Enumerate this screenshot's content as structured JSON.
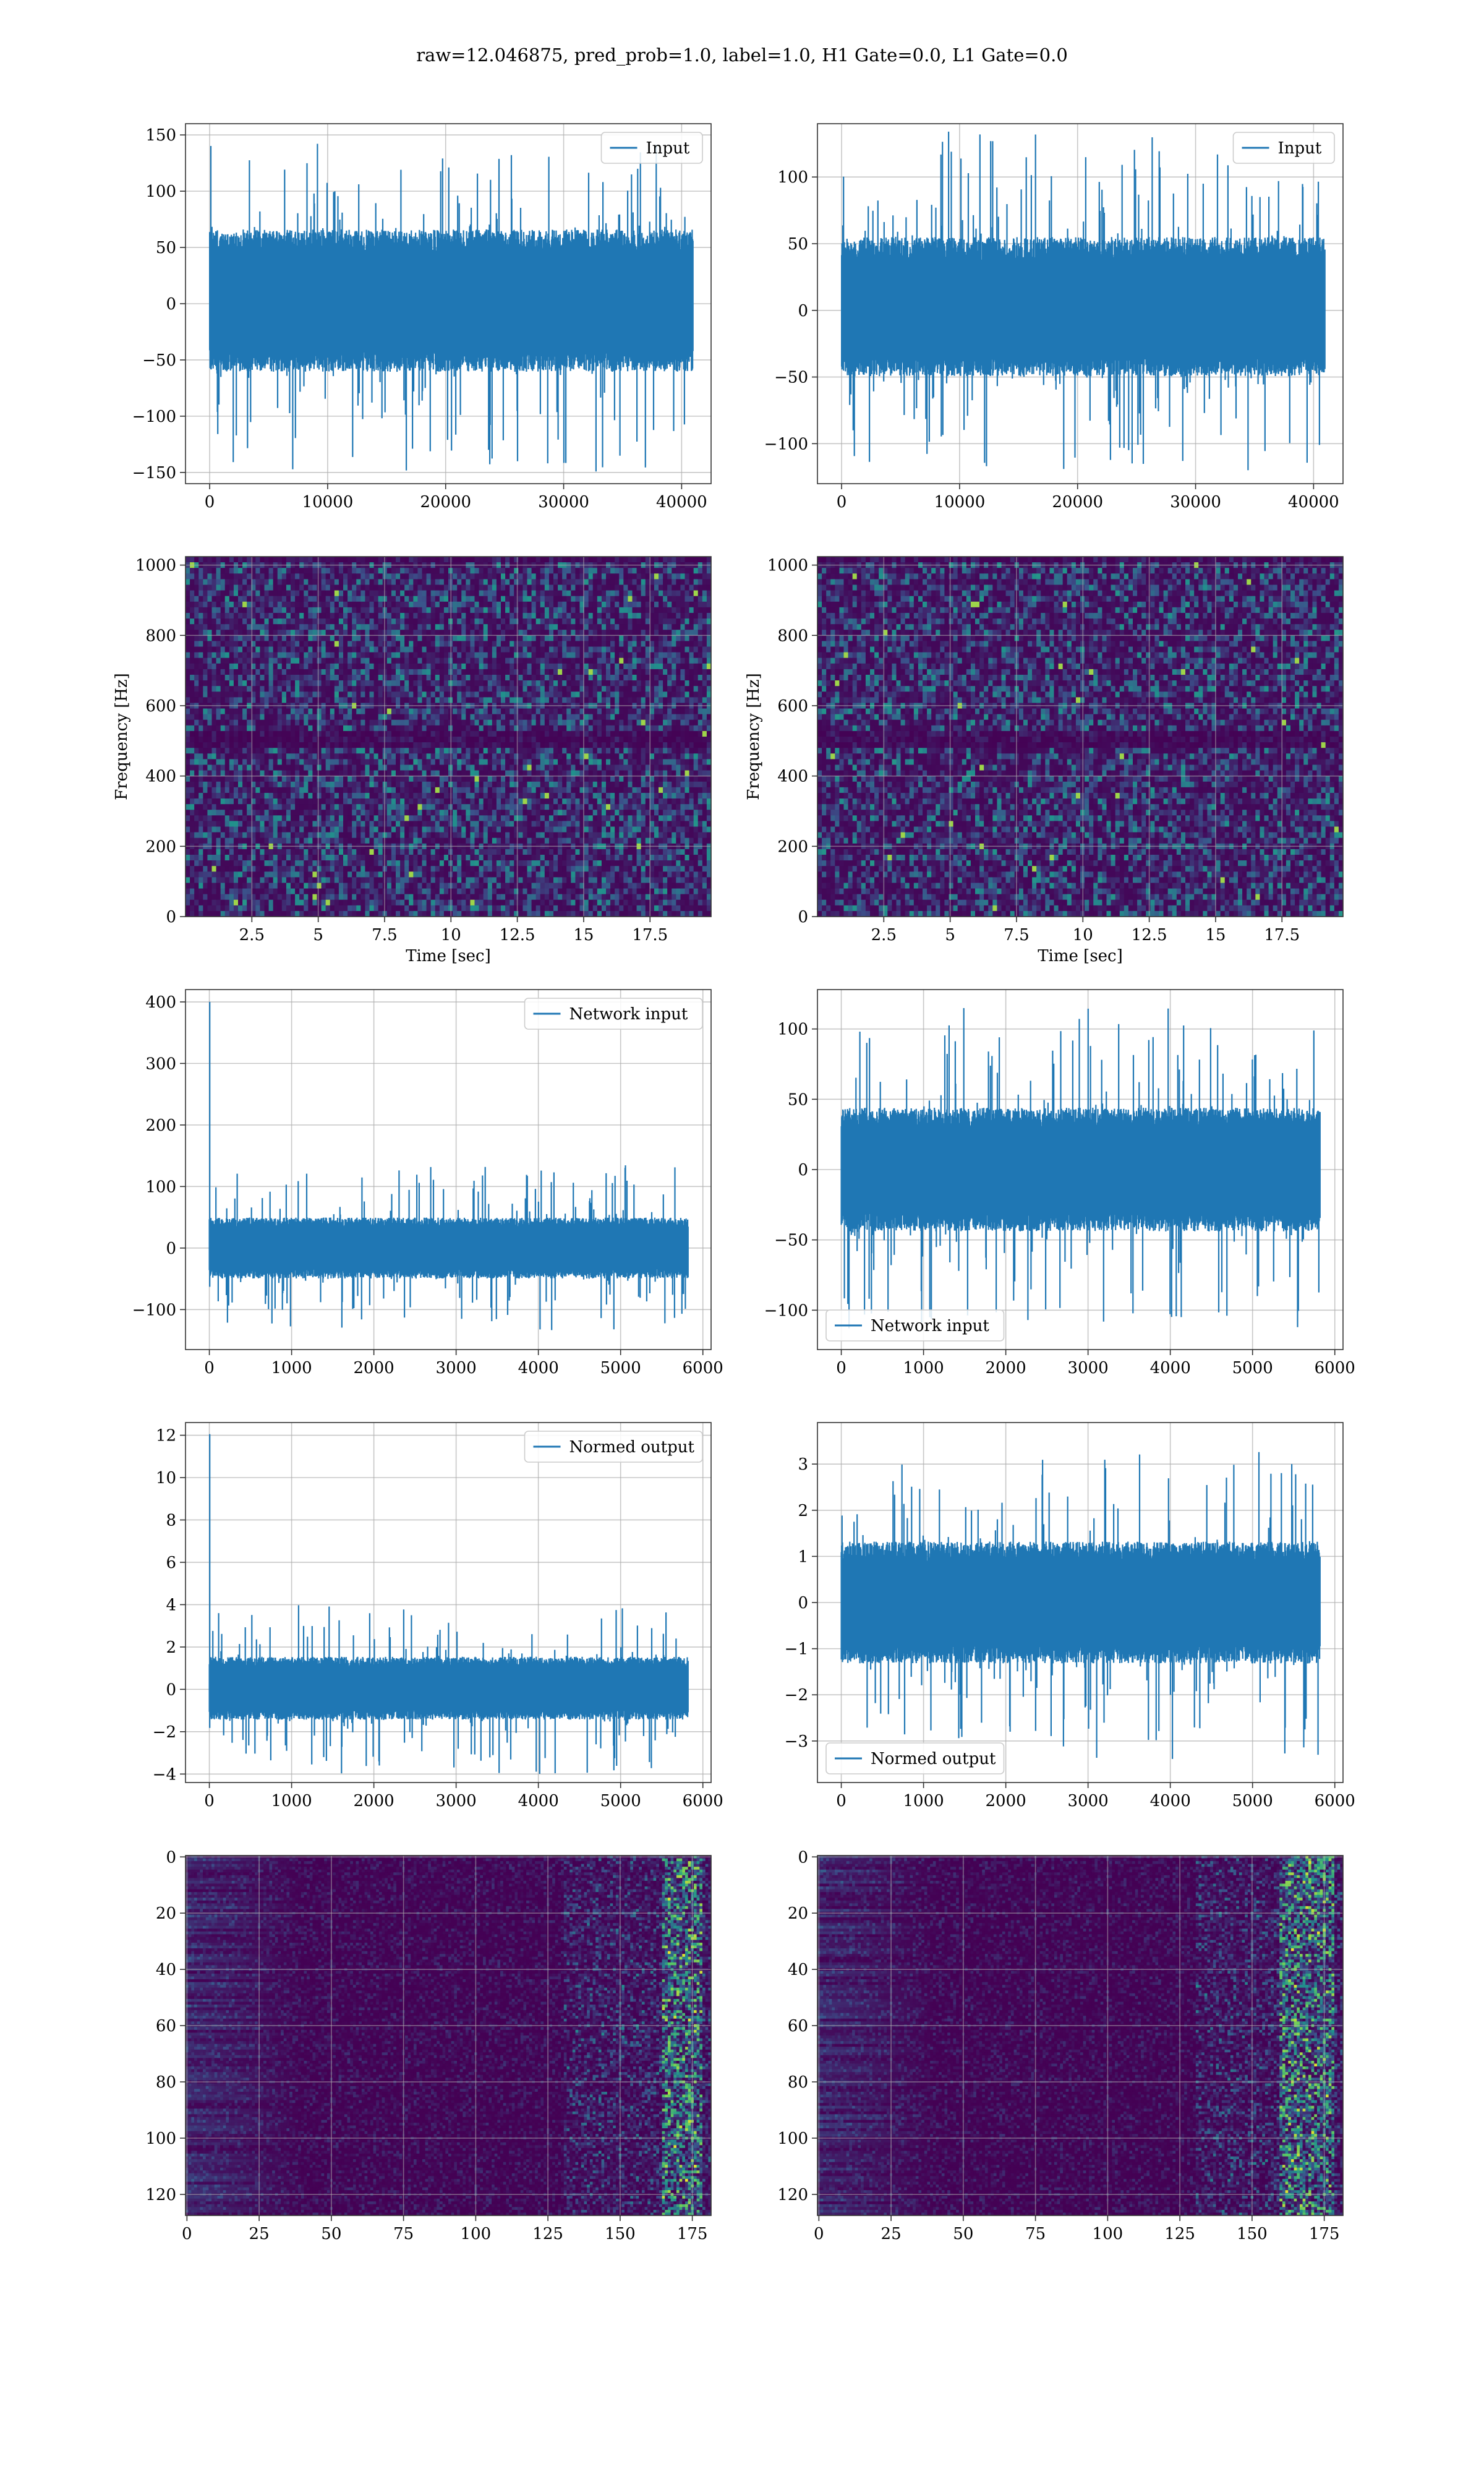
{
  "suptitle": "raw=12.046875, pred_prob=1.0, label=1.0, H1 Gate=0.0, L1 Gate=0.0",
  "colors": {
    "line": "#1f77b4",
    "grid": "#b0b0b0",
    "frame": "#333333",
    "viridis_low": "#440154",
    "viridis_high": "#fde725"
  },
  "chart_data": [
    {
      "id": "row1-left",
      "type": "line",
      "xlim": [
        -2048,
        42496
      ],
      "ylim": [
        -160,
        160
      ],
      "xticks": [
        0,
        10000,
        20000,
        30000,
        40000
      ],
      "yticks": [
        -150,
        -100,
        -50,
        0,
        50,
        100,
        150
      ],
      "grid": true,
      "legend": {
        "label": "Input",
        "loc": "upper right"
      },
      "series": [
        {
          "name": "Input",
          "x_range": [
            0,
            40960
          ],
          "band": [
            -55,
            60
          ],
          "extremes": [
            -150,
            145
          ],
          "offset": 0
        }
      ]
    },
    {
      "id": "row1-right",
      "type": "line",
      "xlim": [
        -2048,
        42496
      ],
      "ylim": [
        -130,
        140
      ],
      "xticks": [
        0,
        10000,
        20000,
        30000,
        40000
      ],
      "yticks": [
        -100,
        -50,
        0,
        50,
        100
      ],
      "grid": true,
      "legend": {
        "label": "Input",
        "loc": "upper right"
      },
      "series": [
        {
          "name": "Input",
          "x_range": [
            0,
            40960
          ],
          "band": [
            -45,
            50
          ],
          "extremes": [
            -120,
            135
          ],
          "offset": 0
        }
      ]
    },
    {
      "id": "row2-left",
      "type": "heatmap",
      "xlim": [
        0,
        19.8
      ],
      "ylim": [
        0,
        1024
      ],
      "xticks": [
        2.5,
        5.0,
        7.5,
        10.0,
        12.5,
        15.0,
        17.5
      ],
      "yticks": [
        0,
        200,
        400,
        600,
        800,
        1000
      ],
      "xlabel": "Time [sec]",
      "ylabel": "Frequency [Hz]",
      "grid": true,
      "colormap": "viridis",
      "dark_band_hz": 500
    },
    {
      "id": "row2-right",
      "type": "heatmap",
      "xlim": [
        0,
        19.8
      ],
      "ylim": [
        0,
        1024
      ],
      "xticks": [
        2.5,
        5.0,
        7.5,
        10.0,
        12.5,
        15.0,
        17.5
      ],
      "yticks": [
        0,
        200,
        400,
        600,
        800,
        1000
      ],
      "xlabel": "Time [sec]",
      "ylabel": "Frequency [Hz]",
      "grid": true,
      "colormap": "viridis",
      "dark_band_hz": 500
    },
    {
      "id": "row3-left",
      "type": "line",
      "xlim": [
        -290,
        6100
      ],
      "ylim": [
        -165,
        420
      ],
      "xticks": [
        0,
        1000,
        2000,
        3000,
        4000,
        5000,
        6000
      ],
      "yticks": [
        -100,
        0,
        100,
        200,
        300,
        400
      ],
      "grid": true,
      "legend": {
        "label": "Network input",
        "loc": "upper right"
      },
      "series": [
        {
          "name": "Network input",
          "x_range": [
            0,
            5820
          ],
          "band": [
            -45,
            45
          ],
          "extremes": [
            -135,
            135
          ],
          "spike": [
            5,
            400
          ],
          "offset": 0
        }
      ]
    },
    {
      "id": "row3-right",
      "type": "line",
      "xlim": [
        -290,
        6100
      ],
      "ylim": [
        -128,
        128
      ],
      "xticks": [
        0,
        1000,
        2000,
        3000,
        4000,
        5000,
        6000
      ],
      "yticks": [
        -100,
        -50,
        0,
        50,
        100
      ],
      "grid": true,
      "legend": {
        "label": "Network input",
        "loc": "lower left"
      },
      "series": [
        {
          "name": "Network input",
          "x_range": [
            0,
            5820
          ],
          "band": [
            -40,
            40
          ],
          "extremes": [
            -115,
            115
          ],
          "offset": 0
        }
      ]
    },
    {
      "id": "row4-left",
      "type": "line",
      "xlim": [
        -290,
        6100
      ],
      "ylim": [
        -4.4,
        12.6
      ],
      "xticks": [
        0,
        1000,
        2000,
        3000,
        4000,
        5000,
        6000
      ],
      "yticks": [
        -4,
        -2,
        0,
        2,
        4,
        6,
        8,
        10,
        12
      ],
      "grid": true,
      "legend": {
        "label": "Normed output",
        "loc": "upper right"
      },
      "series": [
        {
          "name": "Normed output",
          "x_range": [
            0,
            5820
          ],
          "band": [
            -1.3,
            1.4
          ],
          "extremes": [
            -4.0,
            4.0
          ],
          "spike": [
            5,
            12.05
          ],
          "offset": 0
        }
      ]
    },
    {
      "id": "row4-right",
      "type": "line",
      "xlim": [
        -290,
        6100
      ],
      "ylim": [
        -3.9,
        3.9
      ],
      "xticks": [
        0,
        1000,
        2000,
        3000,
        4000,
        5000,
        6000
      ],
      "yticks": [
        -3,
        -2,
        -1,
        0,
        1,
        2,
        3
      ],
      "grid": true,
      "legend": {
        "label": "Normed output",
        "loc": "lower left"
      },
      "series": [
        {
          "name": "Normed output",
          "x_range": [
            0,
            5820
          ],
          "band": [
            -1.2,
            1.2
          ],
          "extremes": [
            -3.4,
            3.4
          ],
          "offset": 0
        }
      ]
    },
    {
      "id": "row5-left",
      "type": "heatmap",
      "xlim": [
        -0.5,
        181.5
      ],
      "ylim": [
        127.5,
        -0.5
      ],
      "xticks": [
        0,
        25,
        50,
        75,
        100,
        125,
        150,
        175
      ],
      "yticks": [
        0,
        20,
        40,
        60,
        80,
        100,
        120
      ],
      "grid": true,
      "colormap": "viridis",
      "bright_columns": [
        165,
        178
      ]
    },
    {
      "id": "row5-right",
      "type": "heatmap",
      "xlim": [
        -0.5,
        181.5
      ],
      "ylim": [
        127.5,
        -0.5
      ],
      "xticks": [
        0,
        25,
        50,
        75,
        100,
        125,
        150,
        175
      ],
      "yticks": [
        0,
        20,
        40,
        60,
        80,
        100,
        120
      ],
      "grid": true,
      "colormap": "viridis",
      "bright_columns": [
        160,
        178
      ]
    }
  ]
}
